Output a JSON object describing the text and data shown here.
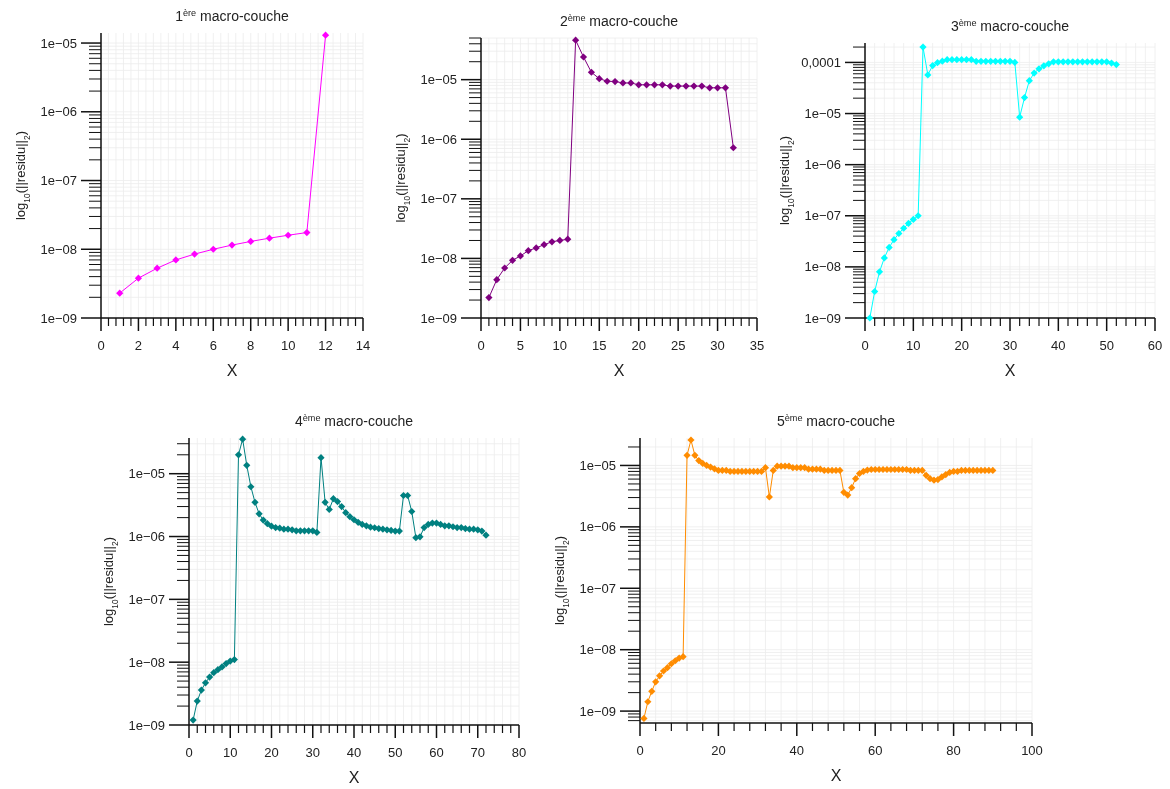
{
  "chart_data": [
    {
      "type": "line",
      "title": "1$^{ère}$ macro-couche",
      "xlabel": "X",
      "ylabel": "log$_{10}$(||residu||$_{2}$)",
      "log": "y",
      "grid": true,
      "marker": "diamond",
      "xlim": [
        0,
        14
      ],
      "xticks": [
        0,
        2,
        4,
        6,
        8,
        10,
        12,
        14
      ],
      "ylim": [
        1e-09,
        1.4e-05
      ],
      "yticks": [
        {
          "value": 1e-09,
          "label": "1e−09"
        },
        {
          "value": 1e-08,
          "label": "1e−08"
        },
        {
          "value": 1e-07,
          "label": "1e−07"
        },
        {
          "value": 1e-06,
          "label": "1e−06"
        },
        {
          "value": 1e-05,
          "label": "1e−05"
        }
      ],
      "series": [
        {
          "color": "#ff00ff",
          "x": [
            1,
            2,
            3,
            4,
            5,
            6,
            7,
            8,
            9,
            10,
            11,
            12
          ],
          "values": [
            2.3e-09,
            3.8e-09,
            5.3e-09,
            7e-09,
            8.5e-09,
            1e-08,
            1.15e-08,
            1.3e-08,
            1.45e-08,
            1.6e-08,
            1.75e-08,
            1.3e-05
          ]
        }
      ]
    },
    {
      "type": "line",
      "title": "2$^{ème}$ macro-couche",
      "xlabel": "X",
      "ylabel": "log$_{10}$(||residu||$_{2}$)",
      "log": "y",
      "grid": true,
      "marker": "diamond",
      "xlim": [
        0,
        35
      ],
      "xticks": [
        0,
        5,
        10,
        15,
        20,
        25,
        30,
        35
      ],
      "ylim": [
        1e-09,
        5e-05
      ],
      "yticks": [
        {
          "value": 1e-09,
          "label": "1e−09"
        },
        {
          "value": 1e-08,
          "label": "1e−08"
        },
        {
          "value": 1e-07,
          "label": "1e−07"
        },
        {
          "value": 1e-06,
          "label": "1e−06"
        },
        {
          "value": 1e-05,
          "label": "1e−05"
        }
      ],
      "series": [
        {
          "color": "#800080",
          "x": [
            1,
            2,
            3,
            4,
            5,
            6,
            7,
            8,
            9,
            10,
            11,
            12,
            13,
            14,
            15,
            16,
            17,
            18,
            19,
            20,
            21,
            22,
            23,
            24,
            25,
            26,
            27,
            28,
            29,
            30,
            31,
            32
          ],
          "values": [
            2.2e-09,
            4.4e-09,
            6.9e-09,
            9.3e-09,
            1.1e-08,
            1.35e-08,
            1.5e-08,
            1.7e-08,
            1.9e-08,
            2e-08,
            2.1e-08,
            4.6e-05,
            2.4e-05,
            1.33e-05,
            1.04e-05,
            9.4e-06,
            9.3e-06,
            8.8e-06,
            8.8e-06,
            8.2e-06,
            8.2e-06,
            8.2e-06,
            8.2e-06,
            7.8e-06,
            7.8e-06,
            7.8e-06,
            7.8e-06,
            7.8e-06,
            7.3e-06,
            7.3e-06,
            7.3e-06,
            7.2e-07
          ]
        }
      ]
    },
    {
      "type": "line",
      "title": "3$^{ème}$ macro-couche",
      "xlabel": "X",
      "ylabel": "log$_{10}$(||residu||$_{2}$)",
      "log": "y",
      "grid": true,
      "marker": "diamond",
      "xlim": [
        0,
        60
      ],
      "xticks": [
        0,
        10,
        20,
        30,
        40,
        50,
        60
      ],
      "ylim": [
        1e-09,
        0.00024
      ],
      "yticks": [
        {
          "value": 1e-09,
          "label": "1e−09"
        },
        {
          "value": 1e-08,
          "label": "1e−08"
        },
        {
          "value": 1e-07,
          "label": "1e−07"
        },
        {
          "value": 1e-06,
          "label": "1e−06"
        },
        {
          "value": 1e-05,
          "label": "1e−05"
        },
        {
          "value": 0.0001,
          "label": "0,0001"
        }
      ],
      "series": [
        {
          "color": "#00ffff",
          "x": [
            1,
            2,
            3,
            4,
            5,
            6,
            7,
            8,
            9,
            10,
            11,
            12,
            13,
            14,
            15,
            16,
            17,
            18,
            19,
            20,
            21,
            22,
            23,
            24,
            25,
            26,
            27,
            28,
            29,
            30,
            31,
            32,
            33,
            34,
            35,
            36,
            37,
            38,
            39,
            40,
            41,
            42,
            43,
            44,
            45,
            46,
            47,
            48,
            49,
            50,
            51,
            52
          ],
          "values": [
            1e-09,
            3.3e-09,
            8e-09,
            1.5e-08,
            2.4e-08,
            3.4e-08,
            4.5e-08,
            5.7e-08,
            7.1e-08,
            8.5e-08,
            1e-07,
            0.0002,
            5.7e-05,
            8.7e-05,
            9.9e-05,
            0.000106,
            0.000113,
            0.000113,
            0.000113,
            0.000113,
            0.000113,
            0.000113,
            0.000105,
            0.000105,
            0.000105,
            0.000105,
            0.000105,
            0.000105,
            0.000105,
            0.000105,
            0.0001,
            8.5e-06,
            2.05e-05,
            4.4e-05,
            6.2e-05,
            7.5e-05,
            8.6e-05,
            9.4e-05,
            0.000103,
            0.000103,
            0.000103,
            0.000103,
            0.000103,
            0.000103,
            0.000103,
            0.000103,
            0.000103,
            0.000103,
            0.000103,
            0.000103,
            9.7e-05,
            9.1e-05
          ]
        }
      ]
    },
    {
      "type": "line",
      "title": "4$^{ème}$ macro-couche",
      "xlabel": "X",
      "ylabel": "log$_{10}$(||residu||$_{2}$)",
      "log": "y",
      "grid": true,
      "marker": "diamond",
      "xlim": [
        0,
        80
      ],
      "xticks": [
        0,
        10,
        20,
        30,
        40,
        50,
        60,
        70,
        80
      ],
      "ylim": [
        1e-09,
        3.7e-05
      ],
      "yticks": [
        {
          "value": 1e-09,
          "label": "1e−09"
        },
        {
          "value": 1e-08,
          "label": "1e−08"
        },
        {
          "value": 1e-07,
          "label": "1e−07"
        },
        {
          "value": 1e-06,
          "label": "1e−06"
        },
        {
          "value": 1e-05,
          "label": "1e−05"
        }
      ],
      "series": [
        {
          "color": "#008080",
          "x": [
            1,
            2,
            3,
            4,
            5,
            6,
            7,
            8,
            9,
            10,
            11,
            12,
            13,
            14,
            15,
            16,
            17,
            18,
            19,
            20,
            21,
            22,
            23,
            24,
            25,
            26,
            27,
            28,
            29,
            30,
            31,
            32,
            33,
            34,
            35,
            36,
            37,
            38,
            39,
            40,
            41,
            42,
            43,
            44,
            45,
            46,
            47,
            48,
            49,
            50,
            51,
            52,
            53,
            54,
            55,
            56,
            57,
            58,
            59,
            60,
            61,
            62,
            63,
            64,
            65,
            66,
            67,
            68,
            69,
            70,
            71,
            72
          ],
          "values": [
            1.2e-09,
            2.4e-09,
            3.6e-09,
            4.7e-09,
            5.8e-09,
            6.8e-09,
            7.6e-09,
            8.4e-09,
            9.5e-09,
            1.04e-08,
            1.1e-08,
            2e-05,
            3.55e-05,
            1.36e-05,
            6.2e-06,
            3.5e-06,
            2.3e-06,
            1.83e-06,
            1.6e-06,
            1.46e-06,
            1.39e-06,
            1.36e-06,
            1.31e-06,
            1.31e-06,
            1.28e-06,
            1.23e-06,
            1.23e-06,
            1.23e-06,
            1.23e-06,
            1.23e-06,
            1.16e-06,
            1.8e-05,
            3.5e-06,
            2.7e-06,
            4e-06,
            3.6e-06,
            3e-06,
            2.4e-06,
            2.07e-06,
            1.85e-06,
            1.68e-06,
            1.56e-06,
            1.48e-06,
            1.41e-06,
            1.38e-06,
            1.34e-06,
            1.31e-06,
            1.28e-06,
            1.25e-06,
            1.22e-06,
            1.22e-06,
            4.5e-06,
            4.5e-06,
            2.5e-06,
            9.6e-07,
            9.9e-07,
            1.39e-06,
            1.56e-06,
            1.64e-06,
            1.64e-06,
            1.56e-06,
            1.48e-06,
            1.48e-06,
            1.43e-06,
            1.39e-06,
            1.39e-06,
            1.34e-06,
            1.31e-06,
            1.31e-06,
            1.28e-06,
            1.22e-06,
            1.05e-06
          ]
        }
      ]
    },
    {
      "type": "line",
      "title": "5$^{ème}$ macro-couche",
      "xlabel": "X",
      "ylabel": "log$_{10}$(||residu||$_{2}$)",
      "log": "y",
      "grid": true,
      "marker": "diamond",
      "xlim": [
        0,
        100
      ],
      "xticks": [
        0,
        20,
        40,
        60,
        80,
        100
      ],
      "ylim": [
        6.4e-10,
        2.8e-05
      ],
      "yticks": [
        {
          "value": 1e-09,
          "label": "1e−09"
        },
        {
          "value": 1e-08,
          "label": "1e−08"
        },
        {
          "value": 1e-07,
          "label": "1e−07"
        },
        {
          "value": 1e-06,
          "label": "1e−06"
        },
        {
          "value": 1e-05,
          "label": "1e−05"
        }
      ],
      "series": [
        {
          "color": "#ff8c00",
          "x": [
            1,
            2,
            3,
            4,
            5,
            6,
            7,
            8,
            9,
            10,
            11,
            12,
            13,
            14,
            15,
            16,
            17,
            18,
            19,
            20,
            21,
            22,
            23,
            24,
            25,
            26,
            27,
            28,
            29,
            30,
            31,
            32,
            33,
            34,
            35,
            36,
            37,
            38,
            39,
            40,
            41,
            42,
            43,
            44,
            45,
            46,
            47,
            48,
            49,
            50,
            51,
            52,
            53,
            54,
            55,
            56,
            57,
            58,
            59,
            60,
            61,
            62,
            63,
            64,
            65,
            66,
            67,
            68,
            69,
            70,
            71,
            72,
            73,
            74,
            75,
            76,
            77,
            78,
            79,
            80,
            81,
            82,
            83,
            84,
            85,
            86,
            87,
            88,
            89,
            90
          ],
          "values": [
            7.6e-10,
            1.42e-09,
            2.1e-09,
            3e-09,
            3.75e-09,
            4.5e-09,
            5.1e-09,
            5.9e-09,
            6.6e-09,
            7.3e-09,
            7.7e-09,
            1.46e-05,
            2.6e-05,
            1.46e-05,
            1.2e-05,
            1.08e-05,
            1e-05,
            9.4e-06,
            8.8e-06,
            8.3e-06,
            8.3e-06,
            8.3e-06,
            8e-06,
            8e-06,
            8e-06,
            8e-06,
            8e-06,
            8e-06,
            8e-06,
            8e-06,
            8e-06,
            9.2e-06,
            3.07e-06,
            8.3e-06,
            9.75e-06,
            9.75e-06,
            9.75e-06,
            9.75e-06,
            9.2e-06,
            9.2e-06,
            9.2e-06,
            9.2e-06,
            8.7e-06,
            8.7e-06,
            8.7e-06,
            8.7e-06,
            8.3e-06,
            8.3e-06,
            8.3e-06,
            8.3e-06,
            8.3e-06,
            3.65e-06,
            3.3e-06,
            4.35e-06,
            6.1e-06,
            7.4e-06,
            8e-06,
            8.4e-06,
            8.6e-06,
            8.6e-06,
            8.6e-06,
            8.6e-06,
            8.6e-06,
            8.6e-06,
            8.6e-06,
            8.6e-06,
            8.6e-06,
            8.6e-06,
            8.3e-06,
            8.3e-06,
            8.3e-06,
            8.3e-06,
            6.9e-06,
            6.1e-06,
            5.75e-06,
            5.9e-06,
            6.5e-06,
            7.1e-06,
            7.7e-06,
            8e-06,
            8e-06,
            8.3e-06,
            8.3e-06,
            8.3e-06,
            8.3e-06,
            8.3e-06,
            8.3e-06,
            8.3e-06,
            8.3e-06,
            8.3e-06
          ]
        }
      ]
    }
  ]
}
